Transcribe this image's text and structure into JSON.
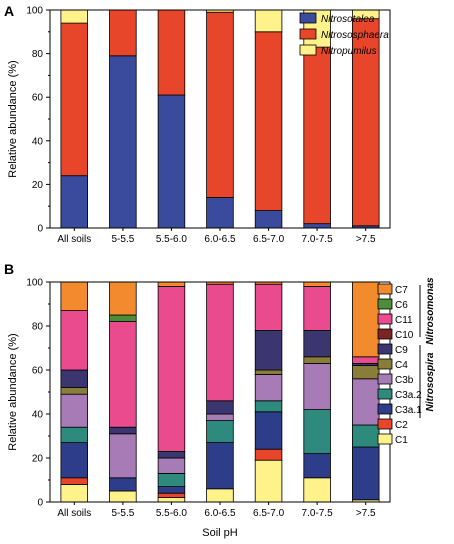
{
  "colors": {
    "Nitrosotalea": "#3a4a9c",
    "Nitrososphaera": "#e8462a",
    "Nitropumilus": "#fff28a",
    "C7": "#f28a2e",
    "C6": "#4d8c3a",
    "C11": "#ea4a8e",
    "C10": "#7a2424",
    "C9": "#3b3670",
    "C4": "#8a7d3a",
    "C3b": "#a77cb6",
    "C3a.2": "#2e8a7d",
    "C3a.1": "#2e3d8a",
    "C2": "#e8462a",
    "C1": "#fff28a"
  },
  "labels": {
    "panel_a": "A",
    "panel_b": "B",
    "group_nitrosomonas": "Nitrosomonas",
    "group_nitrosospira": "Nitrosospira"
  },
  "chart_data": [
    {
      "type": "bar",
      "stacked": true,
      "categories": [
        "All soils",
        "5-5.5",
        "5.5-6.0",
        "6.0-6.5",
        "6.5-7.0",
        "7.0-7.5",
        ">7.5"
      ],
      "ylabel": "Relative abundance (%)",
      "xlabel": "",
      "ylim": [
        0,
        100
      ],
      "yticks": [
        0,
        20,
        40,
        60,
        80,
        100
      ],
      "legend_position": "top-right",
      "series": [
        {
          "name": "Nitrosotalea",
          "values": [
            24,
            79,
            61,
            14,
            8,
            2,
            1
          ]
        },
        {
          "name": "Nitrososphaera",
          "values": [
            70,
            21,
            39,
            85,
            82,
            81,
            95
          ]
        },
        {
          "name": "Nitropumilus",
          "values": [
            6,
            0,
            0,
            1,
            10,
            17,
            4
          ]
        }
      ]
    },
    {
      "type": "bar",
      "stacked": true,
      "categories": [
        "All soils",
        "5-5.5",
        "5.5-6.0",
        "6.0-6.5",
        "6.5-7.0",
        "7.0-7.5",
        ">7.5"
      ],
      "ylabel": "Relative abundance (%)",
      "xlabel": "Soil pH",
      "ylim": [
        0,
        100
      ],
      "yticks": [
        0,
        20,
        40,
        60,
        80,
        100
      ],
      "legend_position": "right",
      "series": [
        {
          "name": "C1",
          "values": [
            8,
            5,
            2,
            6,
            19,
            11,
            1
          ]
        },
        {
          "name": "C2",
          "values": [
            3,
            0,
            2,
            0,
            5,
            0,
            0
          ]
        },
        {
          "name": "C3a.1",
          "values": [
            16,
            6,
            3,
            21,
            17,
            11,
            24
          ]
        },
        {
          "name": "C3a.2",
          "values": [
            7,
            0,
            6,
            10,
            5,
            20,
            10
          ]
        },
        {
          "name": "C3b",
          "values": [
            15,
            20,
            7,
            3,
            12,
            21,
            21
          ]
        },
        {
          "name": "C4",
          "values": [
            3,
            0,
            0,
            0,
            2,
            3,
            6
          ]
        },
        {
          "name": "C9",
          "values": [
            8,
            3,
            3,
            6,
            18,
            12,
            1
          ]
        },
        {
          "name": "C10",
          "values": [
            0,
            0,
            0,
            0,
            0,
            0,
            0
          ]
        },
        {
          "name": "C11",
          "values": [
            27,
            48,
            75,
            53,
            21,
            20,
            3
          ]
        },
        {
          "name": "C6",
          "values": [
            0,
            3,
            0,
            0,
            0,
            0,
            0
          ]
        },
        {
          "name": "C7",
          "values": [
            13,
            15,
            2,
            1,
            1,
            2,
            34
          ]
        }
      ],
      "legend_order": [
        "C7",
        "C6",
        "C11",
        "C10",
        "C9",
        "C4",
        "C3b",
        "C3a.2",
        "C3a.1",
        "C2",
        "C1"
      ]
    }
  ]
}
